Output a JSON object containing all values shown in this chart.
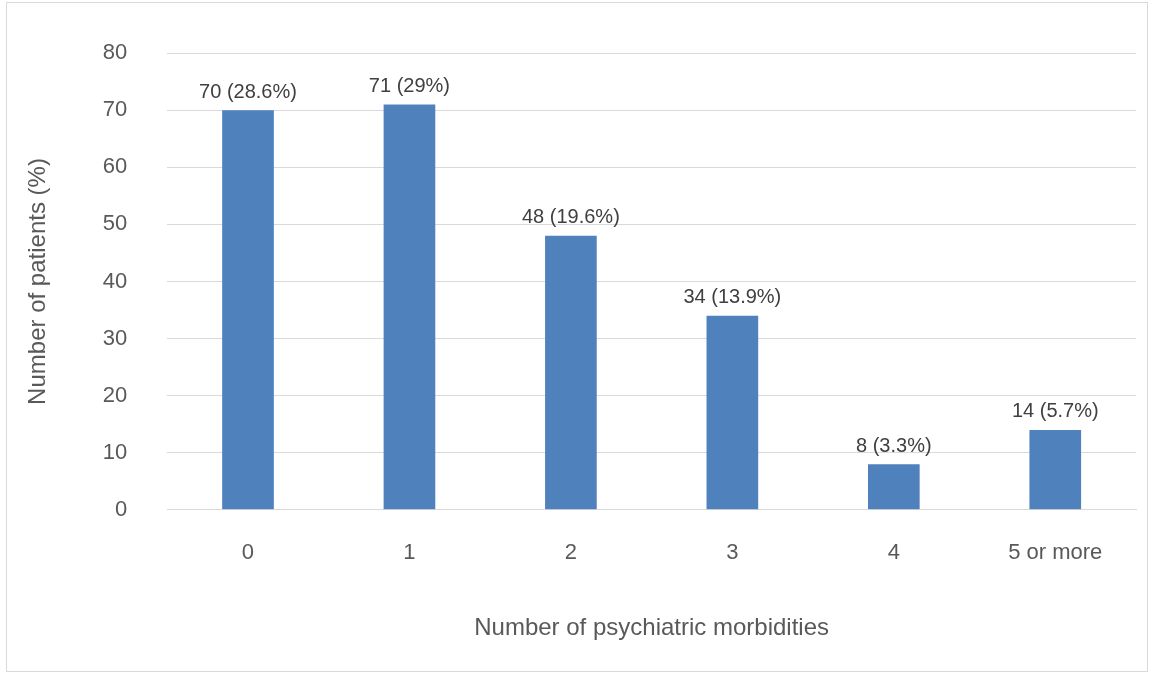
{
  "chart_data": {
    "type": "bar",
    "xlabel": "Number of psychiatric morbidities",
    "ylabel": "Number of patients (%)",
    "categories": [
      "0",
      "1",
      "2",
      "3",
      "4",
      "5 or more"
    ],
    "values": [
      70,
      71,
      48,
      34,
      8,
      14
    ],
    "value_labels": [
      "70 (28.6%)",
      "71 (29%)",
      "48 (19.6%)",
      "34 (13.9%)",
      "8 (3.3%)",
      "14 (5.7%)"
    ],
    "color": "#4f81bd",
    "ylim": [
      0,
      80
    ],
    "yticks": [
      0,
      10,
      20,
      30,
      40,
      50,
      60,
      70,
      80
    ],
    "grid": "y",
    "legend": false
  }
}
